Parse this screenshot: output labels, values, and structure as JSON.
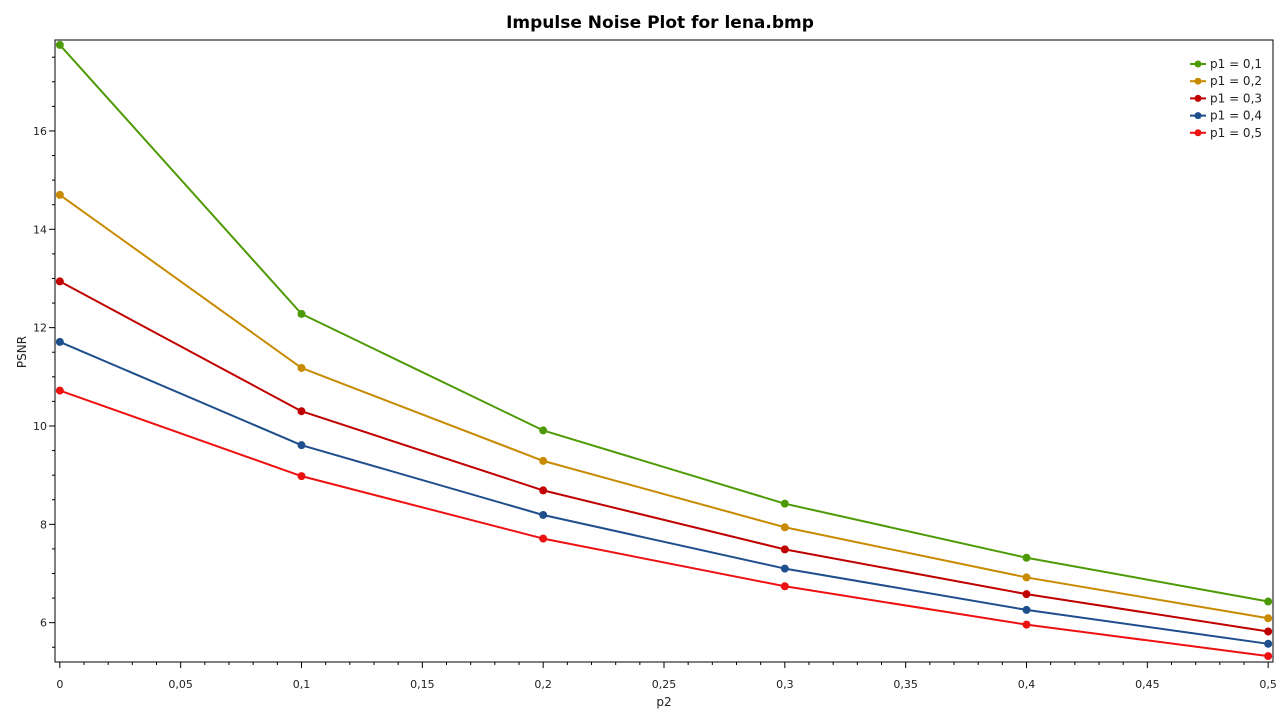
{
  "chart_data": {
    "type": "line",
    "title": "Impulse Noise Plot for lena.bmp",
    "xlabel": "p2",
    "ylabel": "PSNR",
    "x": [
      0,
      0.1,
      0.2,
      0.3,
      0.4,
      0.5
    ],
    "xlim": [
      -0.002,
      0.502
    ],
    "ylim": [
      5.2,
      17.85
    ],
    "x_ticks": [
      "0",
      "0,05",
      "0,1",
      "0,15",
      "0,2",
      "0,25",
      "0,3",
      "0,35",
      "0,4",
      "0,45",
      "0,5"
    ],
    "x_tick_values": [
      0,
      0.05,
      0.1,
      0.15,
      0.2,
      0.25,
      0.3,
      0.35,
      0.4,
      0.45,
      0.5
    ],
    "y_ticks": [
      "6",
      "8",
      "10",
      "12",
      "14",
      "16"
    ],
    "y_tick_values": [
      6,
      8,
      10,
      12,
      14,
      16
    ],
    "grid": false,
    "legend_position": "top-right",
    "series": [
      {
        "name": "p1 = 0,1",
        "color": "#4e9a06",
        "values": [
          17.75,
          12.28,
          9.91,
          8.42,
          7.32,
          6.43
        ]
      },
      {
        "name": "p1 = 0,2",
        "color": "#c88a00",
        "values": [
          14.7,
          11.18,
          9.29,
          7.94,
          6.92,
          6.09
        ]
      },
      {
        "name": "p1 = 0,3",
        "color": "#c00000",
        "values": [
          12.94,
          10.3,
          8.69,
          7.49,
          6.58,
          5.82
        ]
      },
      {
        "name": "p1 = 0,4",
        "color": "#1f4e8c",
        "values": [
          11.71,
          9.61,
          8.19,
          7.1,
          6.26,
          5.57
        ]
      },
      {
        "name": "p1 = 0,5",
        "color": "#ee1111",
        "values": [
          10.72,
          8.98,
          7.71,
          6.74,
          5.96,
          5.32
        ]
      }
    ]
  }
}
